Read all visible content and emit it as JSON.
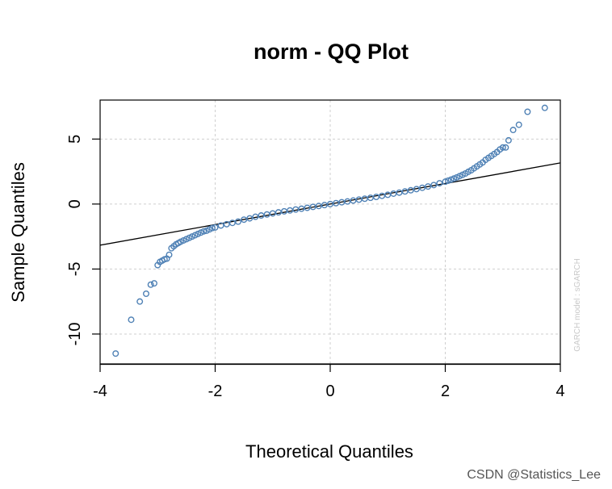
{
  "chart_data": {
    "type": "scatter",
    "title": "norm - QQ Plot",
    "xlabel": "Theoretical Quantiles",
    "ylabel": "Sample Quantiles",
    "xlim": [
      -4,
      4
    ],
    "ylim": [
      -12.3,
      8.0
    ],
    "xticks": [
      "-4",
      "-2",
      "0",
      "2",
      "4"
    ],
    "yticks": [
      "5",
      "0",
      "-5",
      "-10"
    ],
    "xtick_values": [
      -4,
      -2,
      0,
      2,
      4
    ],
    "ytick_values": [
      5,
      0,
      -5,
      -10
    ],
    "grid": true,
    "point_color": "#4f81b5",
    "line_color": "#000000",
    "reference_line": {
      "x": [
        -4.3,
        4.3
      ],
      "y": [
        -3.4,
        3.4
      ]
    },
    "series": [
      {
        "x": [
          -3.73,
          -3.46,
          -3.31,
          -3.2,
          -3.12,
          -3.06,
          -3.0,
          -2.96,
          -2.92,
          -2.88,
          -2.84,
          -2.8,
          -2.76,
          -2.72,
          -2.68,
          -2.64,
          -2.6,
          -2.55,
          -2.5,
          -2.45,
          -2.4,
          -2.35,
          -2.3,
          -2.25,
          -2.2,
          -2.15,
          -2.1,
          -2.05,
          -2.0,
          -1.9,
          -1.8,
          -1.7,
          -1.6,
          -1.5,
          -1.4,
          -1.3,
          -1.2,
          -1.1,
          -1.0,
          -0.9,
          -0.8,
          -0.7,
          -0.6,
          -0.5,
          -0.4,
          -0.3,
          -0.2,
          -0.1,
          0.0,
          0.1,
          0.2,
          0.3,
          0.4,
          0.5,
          0.6,
          0.7,
          0.8,
          0.9,
          1.0,
          1.1,
          1.2,
          1.3,
          1.4,
          1.5,
          1.6,
          1.7,
          1.8,
          1.9,
          2.0,
          2.05,
          2.1,
          2.15,
          2.2,
          2.25,
          2.3,
          2.35,
          2.4,
          2.45,
          2.5,
          2.55,
          2.6,
          2.65,
          2.7,
          2.75,
          2.8,
          2.85,
          2.9,
          2.95,
          3.0,
          3.05,
          3.1,
          3.18,
          3.28,
          3.43,
          3.73
        ],
        "y": [
          -11.5,
          -8.9,
          -7.5,
          -6.9,
          -6.2,
          -6.1,
          -4.7,
          -4.45,
          -4.35,
          -4.25,
          -4.2,
          -3.9,
          -3.4,
          -3.25,
          -3.1,
          -3.0,
          -2.9,
          -2.8,
          -2.7,
          -2.6,
          -2.5,
          -2.4,
          -2.3,
          -2.2,
          -2.1,
          -2.05,
          -1.95,
          -1.85,
          -1.8,
          -1.65,
          -1.55,
          -1.45,
          -1.35,
          -1.2,
          -1.1,
          -0.98,
          -0.88,
          -0.8,
          -0.72,
          -0.64,
          -0.56,
          -0.49,
          -0.42,
          -0.36,
          -0.29,
          -0.22,
          -0.15,
          -0.08,
          0.0,
          0.07,
          0.14,
          0.2,
          0.27,
          0.34,
          0.41,
          0.48,
          0.55,
          0.63,
          0.71,
          0.8,
          0.88,
          0.97,
          1.06,
          1.15,
          1.25,
          1.35,
          1.46,
          1.6,
          1.72,
          1.8,
          1.88,
          1.96,
          2.05,
          2.15,
          2.25,
          2.35,
          2.48,
          2.6,
          2.75,
          2.9,
          3.05,
          3.2,
          3.4,
          3.55,
          3.7,
          3.85,
          4.0,
          4.2,
          4.35,
          4.35,
          4.9,
          5.7,
          6.1,
          7.1,
          7.4
        ]
      }
    ],
    "watermark": "GARCH model : sGARCH"
  },
  "credit": "CSDN @Statistics_Lee"
}
